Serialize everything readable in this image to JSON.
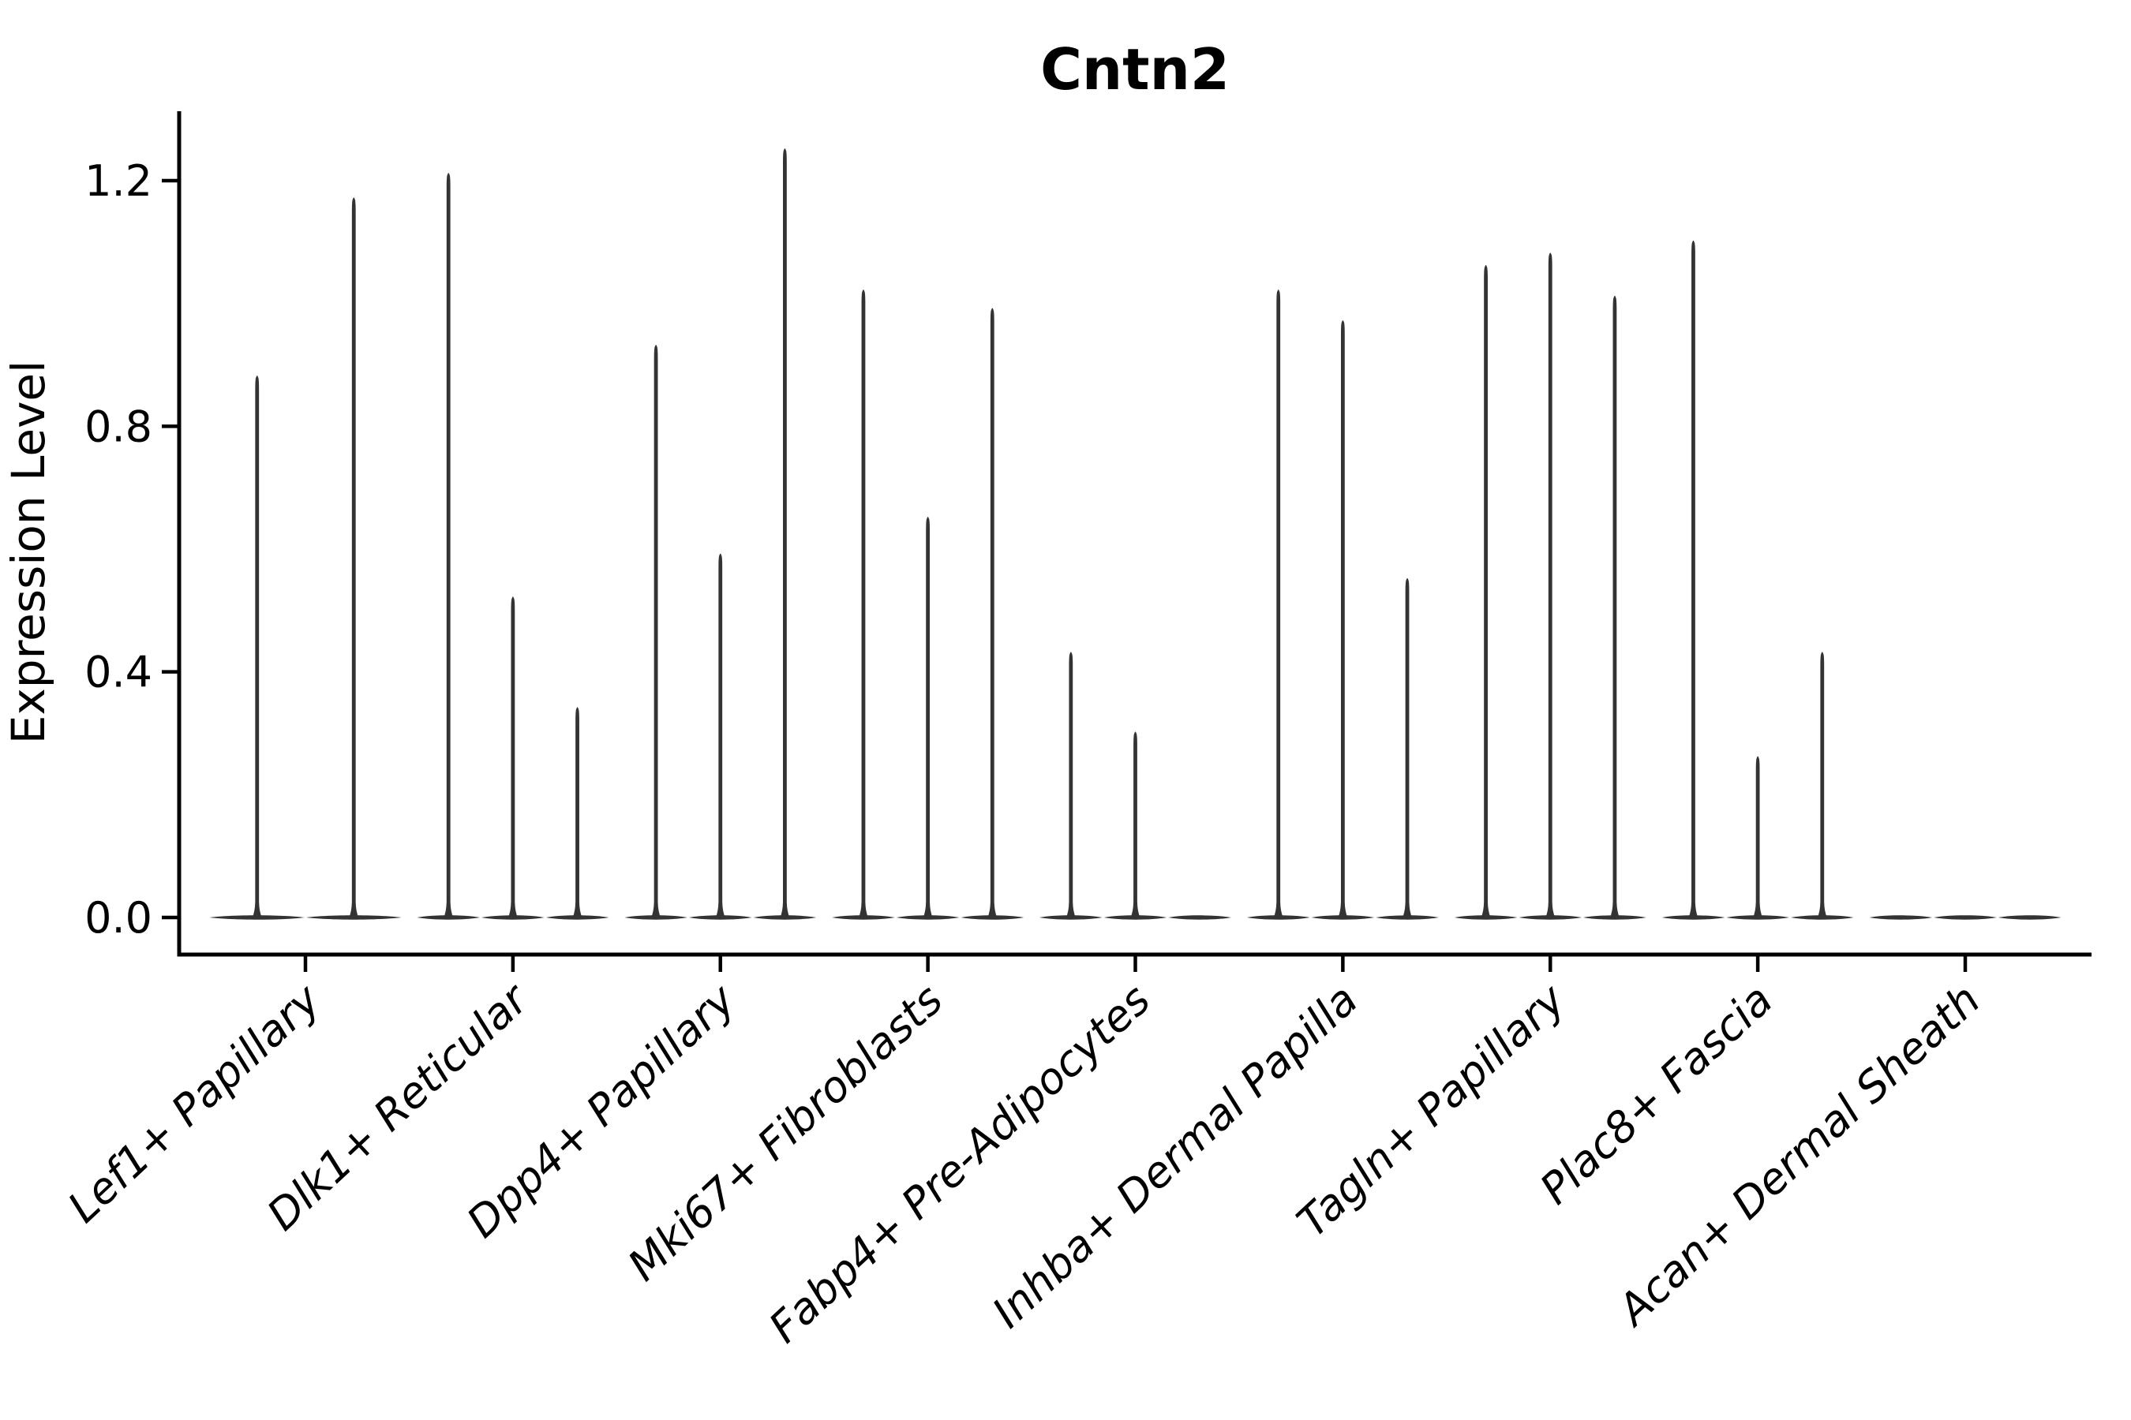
{
  "figure": {
    "background": "#ffffff"
  },
  "chart_data": {
    "type": "violin",
    "title": "Cntn2",
    "xlabel": "",
    "ylabel": "Expression Level",
    "ylim": [
      0,
      1.31
    ],
    "yticks": [
      {
        "value": 0.0,
        "label": "0.0"
      },
      {
        "value": 0.4,
        "label": "0.4"
      },
      {
        "value": 0.8,
        "label": "0.8"
      },
      {
        "value": 1.2,
        "label": "1.2"
      }
    ],
    "grid": false,
    "legend": false,
    "axis_color": "#000000",
    "violin_color": "#333333",
    "groups": [
      {
        "label": "Lef1+ Papillary",
        "violin_max_values": [
          0.88,
          1.17
        ]
      },
      {
        "label": "Dlk1+ Reticular",
        "violin_max_values": [
          1.21,
          0.52,
          0.34
        ]
      },
      {
        "label": "Dpp4+ Papillary",
        "violin_max_values": [
          0.93,
          0.59,
          1.25
        ]
      },
      {
        "label": "Mki67+ Fibroblasts",
        "violin_max_values": [
          1.02,
          0.65,
          0.99
        ]
      },
      {
        "label": "Fabp4+ Pre-Adipocytes",
        "violin_max_values": [
          0.43,
          0.3,
          0.0
        ]
      },
      {
        "label": "Inhba+ Dermal Papilla",
        "violin_max_values": [
          1.02,
          0.97,
          0.55
        ]
      },
      {
        "label": "Tagln+ Papillary",
        "violin_max_values": [
          1.06,
          1.08,
          1.01
        ]
      },
      {
        "label": "Plac8+ Fascia",
        "violin_max_values": [
          1.1,
          0.26,
          0.43
        ]
      },
      {
        "label": "Acan+ Dermal Sheath",
        "violin_max_values": [
          0.0,
          0.0,
          0.0
        ]
      }
    ]
  }
}
